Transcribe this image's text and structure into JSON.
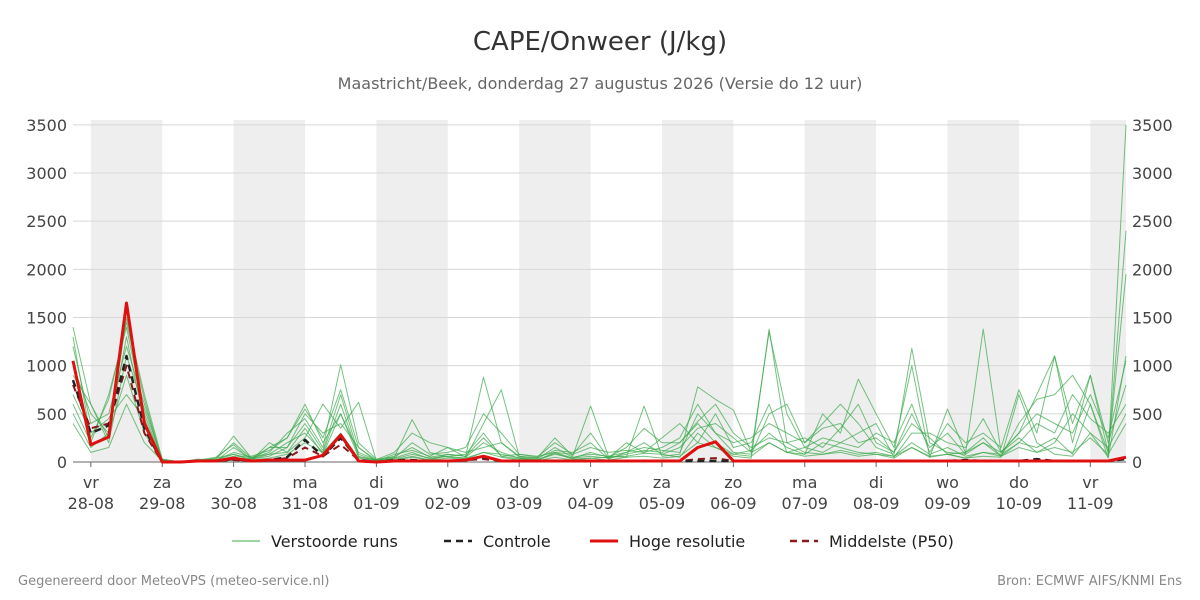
{
  "chart_data": {
    "type": "line",
    "title": "CAPE/Onweer (J/kg)",
    "subtitle": "Maastricht/Beek, donderdag 27 augustus 2026 (Versie do 12 uur)",
    "xlabel": "",
    "ylabel": "",
    "ylim": [
      0,
      3550
    ],
    "y_ticks": [
      0,
      500,
      1000,
      1500,
      2000,
      2500,
      3000,
      3500
    ],
    "grid": true,
    "legend_position": "bottom",
    "x_range_days": [
      -0.25,
      14.5
    ],
    "x_ticks": [
      {
        "day": 0,
        "weekday": "vr",
        "date": "28-08"
      },
      {
        "day": 1,
        "weekday": "za",
        "date": "29-08"
      },
      {
        "day": 2,
        "weekday": "zo",
        "date": "30-08"
      },
      {
        "day": 3,
        "weekday": "ma",
        "date": "31-08"
      },
      {
        "day": 4,
        "weekday": "di",
        "date": "01-09"
      },
      {
        "day": 5,
        "weekday": "wo",
        "date": "02-09"
      },
      {
        "day": 6,
        "weekday": "do",
        "date": "03-09"
      },
      {
        "day": 7,
        "weekday": "vr",
        "date": "04-09"
      },
      {
        "day": 8,
        "weekday": "za",
        "date": "05-09"
      },
      {
        "day": 9,
        "weekday": "zo",
        "date": "06-09"
      },
      {
        "day": 10,
        "weekday": "ma",
        "date": "07-09"
      },
      {
        "day": 11,
        "weekday": "di",
        "date": "08-09"
      },
      {
        "day": 12,
        "weekday": "wo",
        "date": "09-09"
      },
      {
        "day": 13,
        "weekday": "do",
        "date": "10-09"
      },
      {
        "day": 14,
        "weekday": "vr",
        "date": "11-09"
      }
    ],
    "shaded_days": [
      0,
      2,
      4,
      6,
      8,
      10,
      12,
      14
    ],
    "x": [
      -0.25,
      0,
      0.25,
      0.5,
      0.75,
      1,
      1.25,
      1.5,
      1.75,
      2,
      2.25,
      2.5,
      2.75,
      3,
      3.25,
      3.5,
      3.75,
      4,
      4.25,
      4.5,
      4.75,
      5,
      5.25,
      5.5,
      5.75,
      6,
      6.25,
      6.5,
      6.75,
      7,
      7.25,
      7.5,
      7.75,
      8,
      8.25,
      8.5,
      8.75,
      9,
      9.25,
      9.5,
      9.75,
      10,
      10.25,
      10.5,
      10.75,
      11,
      11.25,
      11.5,
      11.75,
      12,
      12.25,
      12.5,
      12.75,
      13,
      13.25,
      13.5,
      13.75,
      14,
      14.25,
      14.5
    ],
    "series": [
      {
        "name": "Controle",
        "color": "#222222",
        "style": "dashed",
        "values": [
          850,
          300,
          380,
          1100,
          350,
          0,
          0,
          10,
          10,
          30,
          10,
          20,
          50,
          230,
          60,
          250,
          20,
          0,
          20,
          20,
          10,
          10,
          20,
          50,
          10,
          10,
          10,
          10,
          10,
          10,
          10,
          10,
          10,
          10,
          10,
          10,
          10,
          10,
          10,
          10,
          10,
          10,
          10,
          10,
          10,
          10,
          10,
          10,
          10,
          10,
          20,
          10,
          10,
          10,
          30,
          10,
          10,
          10,
          10,
          30
        ]
      },
      {
        "name": "Hoge resolutie",
        "color": "#e01010",
        "style": "solid",
        "values": [
          1050,
          180,
          260,
          1650,
          400,
          0,
          0,
          10,
          10,
          40,
          10,
          20,
          20,
          20,
          70,
          280,
          10,
          0,
          10,
          10,
          10,
          10,
          20,
          60,
          10,
          10,
          10,
          10,
          10,
          10,
          10,
          10,
          10,
          10,
          10,
          150,
          210,
          10,
          10,
          10,
          10,
          10,
          10,
          10,
          10,
          10,
          10,
          10,
          10,
          10,
          10,
          10,
          10,
          10,
          10,
          10,
          10,
          10,
          10,
          50
        ]
      },
      {
        "name": "Middelste (P50)",
        "color": "#8b1a1a",
        "style": "dashed",
        "values": [
          800,
          350,
          400,
          1000,
          300,
          0,
          0,
          10,
          10,
          20,
          10,
          20,
          40,
          150,
          60,
          180,
          20,
          0,
          10,
          20,
          10,
          10,
          20,
          30,
          10,
          10,
          10,
          10,
          10,
          10,
          10,
          10,
          10,
          10,
          10,
          30,
          40,
          10,
          10,
          10,
          10,
          10,
          10,
          10,
          10,
          10,
          10,
          10,
          10,
          10,
          10,
          10,
          10,
          10,
          20,
          10,
          10,
          10,
          10,
          40
        ]
      },
      {
        "name": "Verstoorde runs",
        "color": "#3aa84a",
        "style": "thin",
        "values": [
          1400,
          600,
          250,
          1500,
          700,
          30,
          0,
          10,
          20,
          80,
          30,
          60,
          150,
          400,
          120,
          700,
          80,
          10,
          40,
          100,
          30,
          60,
          80,
          300,
          60,
          30,
          20,
          90,
          30,
          40,
          50,
          60,
          90,
          80,
          50,
          300,
          150,
          60,
          40,
          1380,
          200,
          100,
          80,
          120,
          80,
          100,
          60,
          150,
          50,
          80,
          40,
          60,
          50,
          700,
          200,
          80,
          60,
          300,
          50,
          3500
        ]
      },
      {
        "name": "Verstoorde runs",
        "color": "#3aa84a",
        "style": "thin",
        "values": [
          1200,
          400,
          500,
          1200,
          600,
          20,
          0,
          20,
          30,
          200,
          40,
          150,
          250,
          600,
          200,
          500,
          100,
          20,
          60,
          150,
          50,
          80,
          60,
          880,
          200,
          50,
          30,
          150,
          50,
          80,
          60,
          100,
          150,
          120,
          100,
          500,
          300,
          100,
          80,
          500,
          600,
          200,
          400,
          600,
          400,
          150,
          80,
          1180,
          200,
          100,
          80,
          1380,
          100,
          300,
          700,
          1100,
          200,
          900,
          100,
          2400
        ]
      },
      {
        "name": "Verstoorde runs",
        "color": "#3aa84a",
        "style": "thin",
        "values": [
          600,
          200,
          700,
          1400,
          500,
          10,
          0,
          10,
          30,
          270,
          40,
          100,
          300,
          450,
          150,
          1010,
          200,
          30,
          50,
          440,
          100,
          50,
          40,
          400,
          750,
          60,
          40,
          250,
          60,
          580,
          60,
          50,
          580,
          60,
          80,
          780,
          650,
          540,
          100,
          200,
          100,
          80,
          500,
          300,
          860,
          500,
          150,
          1000,
          50,
          550,
          100,
          200,
          60,
          400,
          650,
          700,
          900,
          600,
          100,
          1950
        ]
      },
      {
        "name": "Verstoorde runs",
        "color": "#3aa84a",
        "style": "thin",
        "values": [
          1000,
          500,
          300,
          1300,
          400,
          20,
          0,
          20,
          10,
          150,
          30,
          80,
          200,
          300,
          100,
          600,
          60,
          10,
          80,
          120,
          60,
          150,
          50,
          200,
          100,
          40,
          20,
          100,
          40,
          60,
          40,
          80,
          120,
          100,
          200,
          400,
          200,
          80,
          120,
          300,
          150,
          80,
          200,
          150,
          100,
          80,
          60,
          200,
          80,
          150,
          60,
          100,
          80,
          200,
          150,
          250,
          80,
          600,
          40,
          1100
        ]
      },
      {
        "name": "Verstoorde runs",
        "color": "#3aa84a",
        "style": "thin",
        "values": [
          500,
          150,
          300,
          900,
          300,
          10,
          0,
          10,
          40,
          80,
          20,
          150,
          150,
          500,
          300,
          400,
          150,
          20,
          40,
          200,
          80,
          100,
          150,
          500,
          300,
          80,
          60,
          100,
          80,
          300,
          40,
          200,
          100,
          250,
          400,
          200,
          500,
          150,
          200,
          600,
          100,
          150,
          250,
          200,
          150,
          300,
          200,
          600,
          100,
          400,
          200,
          300,
          150,
          750,
          300,
          1100,
          400,
          900,
          200,
          800
        ]
      },
      {
        "name": "Verstoorde runs",
        "color": "#3aa84a",
        "style": "thin",
        "values": [
          700,
          300,
          450,
          700,
          450,
          15,
          0,
          10,
          20,
          100,
          50,
          80,
          100,
          250,
          600,
          350,
          620,
          15,
          30,
          80,
          40,
          60,
          40,
          100,
          80,
          40,
          20,
          80,
          40,
          100,
          50,
          150,
          350,
          200,
          200,
          420,
          600,
          300,
          150,
          250,
          200,
          250,
          150,
          350,
          600,
          200,
          100,
          400,
          250,
          80,
          100,
          250,
          60,
          200,
          400,
          300,
          700,
          450,
          300,
          600
        ]
      },
      {
        "name": "Verstoorde runs",
        "color": "#3aa84a",
        "style": "thin",
        "values": [
          900,
          600,
          200,
          1100,
          550,
          30,
          0,
          20,
          50,
          180,
          20,
          200,
          100,
          350,
          80,
          500,
          50,
          25,
          100,
          300,
          200,
          150,
          100,
          150,
          200,
          60,
          40,
          120,
          100,
          200,
          30,
          100,
          200,
          80,
          150,
          350,
          400,
          250,
          100,
          1350,
          500,
          150,
          100,
          200,
          300,
          400,
          50,
          300,
          300,
          200,
          150,
          450,
          100,
          250,
          100,
          200,
          500,
          300,
          150,
          500
        ]
      },
      {
        "name": "Verstoorde runs",
        "color": "#3aa84a",
        "style": "thin",
        "values": [
          1300,
          250,
          650,
          1450,
          650,
          5,
          0,
          30,
          15,
          60,
          60,
          120,
          250,
          550,
          250,
          750,
          150,
          5,
          20,
          60,
          20,
          80,
          60,
          250,
          60,
          80,
          50,
          200,
          80,
          150,
          100,
          120,
          100,
          150,
          250,
          600,
          300,
          200,
          250,
          400,
          300,
          200,
          350,
          400,
          200,
          250,
          100,
          500,
          150,
          300,
          80,
          200,
          100,
          300,
          500,
          400,
          300,
          700,
          250,
          1050
        ]
      },
      {
        "name": "Verstoorde runs",
        "color": "#3aa84a",
        "style": "thin",
        "values": [
          400,
          100,
          150,
          600,
          200,
          10,
          0,
          5,
          20,
          50,
          20,
          40,
          80,
          200,
          100,
          300,
          40,
          10,
          20,
          50,
          20,
          40,
          30,
          100,
          50,
          20,
          10,
          50,
          20,
          40,
          20,
          50,
          60,
          40,
          60,
          200,
          150,
          80,
          60,
          200,
          100,
          60,
          80,
          100,
          60,
          80,
          40,
          150,
          60,
          80,
          40,
          100,
          60,
          150,
          100,
          150,
          100,
          250,
          80,
          400
        ]
      }
    ]
  },
  "legend": [
    {
      "label": "Verstoorde runs",
      "color": "#3aa84a",
      "style": "thin"
    },
    {
      "label": "Controle",
      "color": "#222222",
      "style": "dashed"
    },
    {
      "label": "Hoge resolutie",
      "color": "#e01010",
      "style": "solid"
    },
    {
      "label": "Middelste (P50)",
      "color": "#8b1a1a",
      "style": "dashed"
    }
  ],
  "footer": {
    "left": "Gegenereerd door MeteoVPS (meteo-service.nl)",
    "right": "Bron: ECMWF AIFS/KNMI Ens"
  }
}
